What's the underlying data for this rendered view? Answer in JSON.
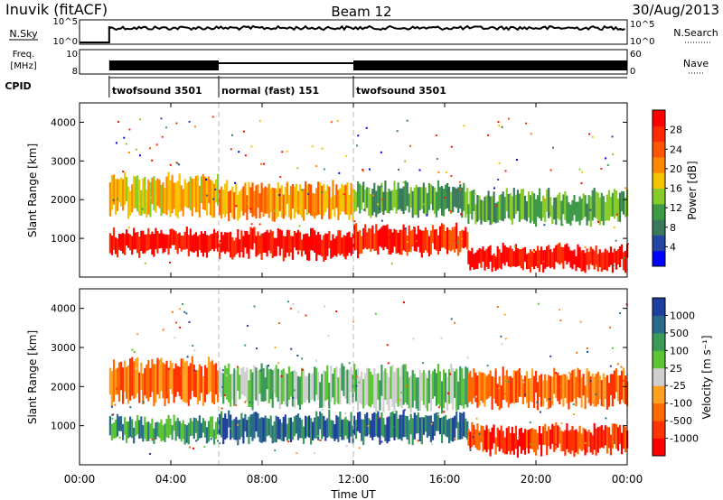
{
  "header": {
    "station": "Inuvik (fitACF)",
    "beam": "Beam 12",
    "date": "30/Aug/2013"
  },
  "status_panels": {
    "left_labels": {
      "nsky": "N.Sky",
      "freq": "Freq.",
      "freq_unit": "[MHz]",
      "cpid": "CPID"
    },
    "right_labels": {
      "nsearch": "N.Search",
      "nave": "Nave"
    },
    "nsky_ticks": [
      "10^5",
      "10^0"
    ],
    "nsearch_ticks": [
      "10^5",
      "10^0"
    ],
    "freq_ticks": [
      "10",
      "8"
    ],
    "nave_ticks": [
      "60",
      "0"
    ],
    "cpid_segments": [
      {
        "start": 1.3,
        "end": 6.1,
        "label": "twofsound 3501"
      },
      {
        "start": 6.1,
        "end": 12.0,
        "label": "normal (fast) 151"
      },
      {
        "start": 12.0,
        "end": 24.0,
        "label": "twofsound 3501"
      }
    ]
  },
  "chart_data": [
    {
      "type": "heatmap",
      "name": "power",
      "ylabel": "Slant Range [km]",
      "ylim": [
        0,
        4500
      ],
      "xlim": [
        0,
        24
      ],
      "ytick_labels": [
        "1000",
        "2000",
        "3000",
        "4000"
      ],
      "colorbar": {
        "label": "Power [dB]",
        "tick_labels": [
          "28",
          "24",
          "20",
          "16",
          "12",
          "8",
          "4"
        ],
        "colors": [
          "#0000ff",
          "#2446a0",
          "#3a7a5a",
          "#3f9a48",
          "#88cc2a",
          "#f4c400",
          "#ff8800",
          "#ff5500",
          "#ff2a00",
          "#ff0000"
        ]
      },
      "bands": [
        {
          "t0": 1.3,
          "t1": 6.1,
          "r0": 600,
          "r1": 1200,
          "level": "28"
        },
        {
          "t0": 1.3,
          "t1": 6.1,
          "r0": 1600,
          "r1": 2600,
          "level": "16"
        },
        {
          "t0": 6.1,
          "t1": 12,
          "r0": 500,
          "r1": 1200,
          "level": "28"
        },
        {
          "t0": 6.1,
          "t1": 12,
          "r0": 1500,
          "r1": 2400,
          "level": "20"
        },
        {
          "t0": 12,
          "t1": 17,
          "r0": 600,
          "r1": 1300,
          "level": "24"
        },
        {
          "t0": 12,
          "t1": 17,
          "r0": 1600,
          "r1": 2400,
          "level": "12"
        },
        {
          "t0": 17,
          "t1": 24,
          "r0": 200,
          "r1": 800,
          "level": "28"
        },
        {
          "t0": 17,
          "t1": 24,
          "r0": 1400,
          "r1": 2200,
          "level": "12"
        }
      ]
    },
    {
      "type": "heatmap",
      "name": "velocity",
      "ylabel": "Slant Range [km]",
      "ylim": [
        0,
        4500
      ],
      "xlim": [
        0,
        24
      ],
      "ytick_labels": [
        "1000",
        "2000",
        "3000",
        "4000"
      ],
      "colorbar": {
        "label": "Velocity [m s⁻¹]",
        "tick_labels": [
          "1000",
          "500",
          "100",
          "25",
          "-25",
          "-100",
          "-500",
          "-1000"
        ],
        "colors": [
          "#ff0000",
          "#ff3300",
          "#ff6a00",
          "#ffa020",
          "#cfcfcf",
          "#5cc436",
          "#3a9a5a",
          "#2a6a8a",
          "#1f3fa0"
        ]
      },
      "bands": [
        {
          "t0": 1.3,
          "t1": 6.1,
          "r0": 600,
          "r1": 1200,
          "level": "100"
        },
        {
          "t0": 1.3,
          "t1": 6.1,
          "r0": 1600,
          "r1": 2700,
          "level": "-100"
        },
        {
          "t0": 6.1,
          "t1": 12,
          "r0": 600,
          "r1": 1300,
          "level": "500"
        },
        {
          "t0": 6.1,
          "t1": 12,
          "r0": 1500,
          "r1": 2500,
          "level": "25"
        },
        {
          "t0": 12,
          "t1": 17,
          "r0": 600,
          "r1": 1300,
          "level": "500"
        },
        {
          "t0": 12,
          "t1": 17,
          "r0": 1400,
          "r1": 2500,
          "level": "25"
        },
        {
          "t0": 17,
          "t1": 24,
          "r0": 300,
          "r1": 1000,
          "level": "-500"
        },
        {
          "t0": 17,
          "t1": 24,
          "r0": 1500,
          "r1": 2400,
          "level": "-100"
        }
      ]
    }
  ],
  "x_axis": {
    "label": "Time UT",
    "tick_labels": [
      "00:00",
      "04:00",
      "08:00",
      "12:00",
      "16:00",
      "20:00",
      "00:00"
    ],
    "tick_hours": [
      0,
      4,
      8,
      12,
      16,
      20,
      24
    ]
  }
}
